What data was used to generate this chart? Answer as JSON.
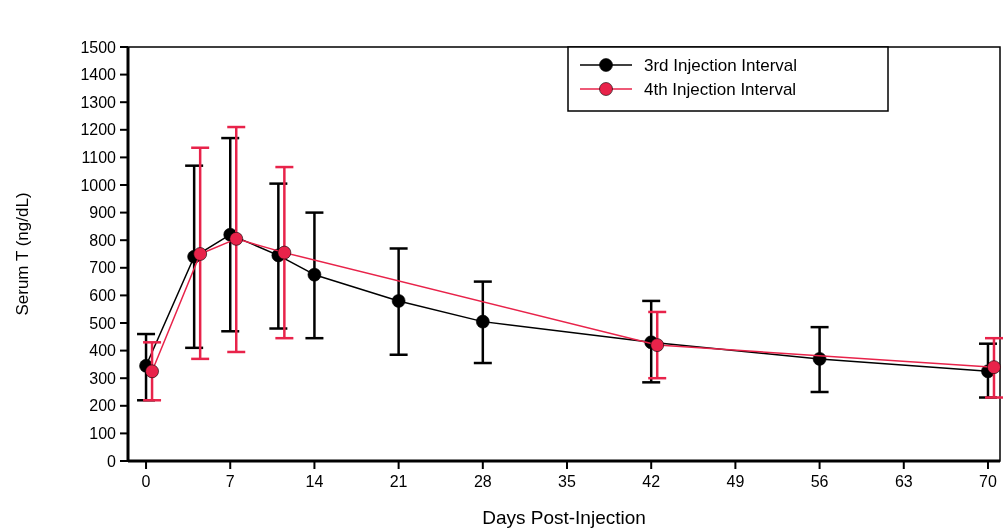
{
  "chart_data": {
    "type": "line",
    "xlabel": "Days Post-Injection",
    "ylabel": "Serum T (ng/dL)",
    "xlim": [
      -1.5,
      71
    ],
    "xticks": [
      0,
      7,
      14,
      21,
      28,
      35,
      42,
      49,
      56,
      63,
      70
    ],
    "ylim": [
      0,
      1500
    ],
    "yticks": [
      0,
      100,
      200,
      300,
      400,
      500,
      600,
      700,
      800,
      900,
      1000,
      1100,
      1200,
      1300,
      1400,
      1500
    ],
    "legend": "top right",
    "marker": "circle",
    "grid": false,
    "series": [
      {
        "name": "3rd Injection Interval",
        "color": "#000000",
        "x": [
          0,
          4,
          7,
          11,
          14,
          21,
          28,
          42,
          56,
          70
        ],
        "values": [
          345,
          740,
          820,
          745,
          675,
          580,
          505,
          430,
          370,
          325
        ],
        "errors": [
          [
            220,
            460
          ],
          [
            410,
            1070
          ],
          [
            470,
            1170
          ],
          [
            480,
            1005
          ],
          [
            445,
            900
          ],
          [
            385,
            770
          ],
          [
            355,
            650
          ],
          [
            285,
            580
          ],
          [
            250,
            485
          ],
          [
            230,
            425
          ]
        ]
      },
      {
        "name": "4th Injection Interval",
        "color": "#e8234a",
        "x": [
          0.5,
          4.5,
          7.5,
          11.5,
          42.5,
          70.5
        ],
        "values": [
          325,
          750,
          805,
          755,
          420,
          340
        ],
        "errors": [
          [
            220,
            430
          ],
          [
            370,
            1135
          ],
          [
            395,
            1210
          ],
          [
            445,
            1065
          ],
          [
            300,
            540
          ],
          [
            230,
            445
          ]
        ]
      }
    ]
  }
}
